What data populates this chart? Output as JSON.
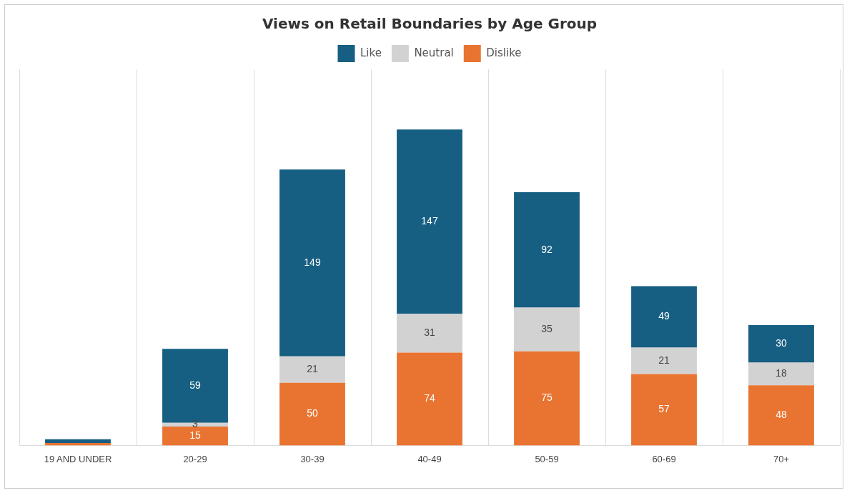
{
  "chart_data": {
    "type": "bar",
    "title": "Views on Retail Boundaries by Age Group",
    "stacked": true,
    "legend": "top",
    "grid": "x",
    "tick_labels": "x",
    "categories": [
      "19 AND UNDER",
      "20-29",
      "30-39",
      "40-49",
      "50-59",
      "60-69",
      "70+"
    ],
    "series": [
      {
        "name": "Dislike",
        "color": "#e97432",
        "values": [
          2,
          15,
          50,
          74,
          75,
          57,
          48
        ],
        "value_labels": [
          null,
          "15",
          "50",
          "74",
          "75",
          "57",
          "48"
        ]
      },
      {
        "name": "Neutral",
        "color": "#d2d2d2",
        "values": [
          0,
          3,
          21,
          31,
          35,
          21,
          18
        ],
        "value_labels": [
          null,
          "3",
          "21",
          "31",
          "35",
          "21",
          "18"
        ]
      },
      {
        "name": "Like",
        "color": "#165f82",
        "values": [
          3,
          59,
          149,
          147,
          92,
          49,
          30
        ],
        "value_labels": [
          null,
          "59",
          "149",
          "147",
          "92",
          "49",
          "30"
        ]
      }
    ]
  }
}
